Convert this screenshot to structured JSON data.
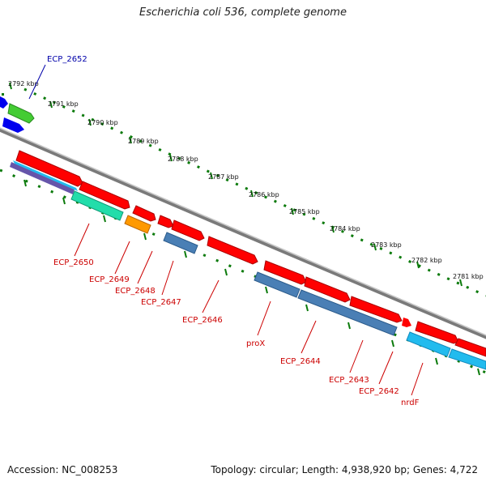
{
  "title": "Escherichia coli 536, complete genome",
  "accession_label": "Accession: NC_008253",
  "topology_label": "Topology: circular; Length: 4,938,920 bp; Genes: 4,722",
  "colors": {
    "backbone": "#888888",
    "ticks": "#0b7a0b",
    "label_red": "#cc0000",
    "label_blue": "#0000aa",
    "gene_red": "#ff0000",
    "gene_blue": "#0000ee",
    "gene_green": "#44cc33",
    "gene_teal": "#22ddaa",
    "gene_orange": "#ff9900",
    "gene_steel": "#4a7fb5",
    "gene_cyan": "#22bbee",
    "gene_purple": "#6655aa"
  },
  "scale_labels": [
    "2792 kbp",
    "2791 kbp",
    "2790 kbp",
    "2789 kbp",
    "2788 kbp",
    "2787 kbp",
    "2786 kbp",
    "2785 kbp",
    "2784 kbp",
    "2783 kbp",
    "2782 kbp",
    "2781 kbp"
  ],
  "gene_labels": [
    "ECP_2652",
    "ECP_2650",
    "ECP_2649",
    "ECP_2648",
    "ECP_2647",
    "ECP_2646",
    "proX",
    "ECP_2644",
    "ECP_2643",
    "ECP_2642",
    "nrdF"
  ]
}
